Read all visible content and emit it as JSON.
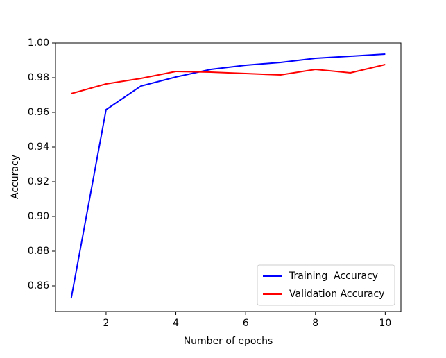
{
  "chart_data": {
    "type": "line",
    "x_label": "Number of epochs",
    "y_label": "Accuracy",
    "x": [
      1,
      2,
      3,
      4,
      5,
      6,
      7,
      8,
      9,
      10
    ],
    "series": [
      {
        "name": "Training  Accuracy",
        "color": "#0000ff",
        "values": [
          0.8528,
          0.9616,
          0.9752,
          0.9804,
          0.9848,
          0.9872,
          0.9888,
          0.9912,
          0.9924,
          0.9936
        ]
      },
      {
        "name": "Validation Accuracy",
        "color": "#ff0000",
        "values": [
          0.9708,
          0.9764,
          0.9796,
          0.9836,
          0.9832,
          0.9824,
          0.9816,
          0.9848,
          0.9828,
          0.9876
        ]
      }
    ],
    "xlim": [
      0.55,
      10.45
    ],
    "xticks": [
      2,
      4,
      6,
      8,
      10
    ],
    "ylim": [
      0.8452,
      1.0
    ],
    "yticks": [
      {
        "value": 0.86,
        "label": "0.86"
      },
      {
        "value": 0.88,
        "label": "0.88"
      },
      {
        "value": 0.9,
        "label": "0.90"
      },
      {
        "value": 0.92,
        "label": "0.92"
      },
      {
        "value": 0.94,
        "label": "0.94"
      },
      {
        "value": 0.96,
        "label": "0.96"
      },
      {
        "value": 0.98,
        "label": "0.98"
      },
      {
        "value": 1.0,
        "label": "1.00"
      }
    ],
    "legend": "lower right",
    "grid": false
  }
}
